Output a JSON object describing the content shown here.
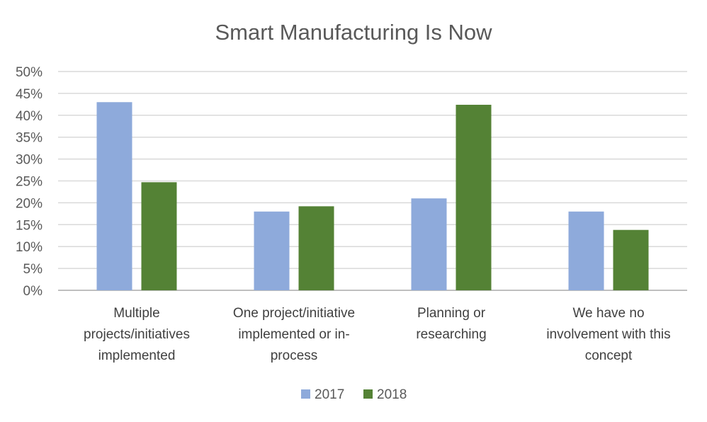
{
  "chart_data": {
    "type": "bar",
    "title": "Smart Manufacturing Is Now",
    "categories": [
      [
        "Multiple",
        "projects/initiatives",
        "implemented"
      ],
      [
        "One project/initiative",
        "implemented or in-",
        "process"
      ],
      [
        "Planning or",
        "researching"
      ],
      [
        "We have no",
        "involvement with this",
        "concept"
      ]
    ],
    "series": [
      {
        "name": "2017",
        "color": "#8eaadb",
        "values": [
          43,
          18,
          21,
          18
        ]
      },
      {
        "name": "2018",
        "color": "#548235",
        "values": [
          24.7,
          19.2,
          42.4,
          13.8
        ]
      }
    ],
    "ylim": [
      0,
      50
    ],
    "yticks": [
      "0%",
      "5%",
      "10%",
      "15%",
      "20%",
      "25%",
      "30%",
      "35%",
      "40%",
      "45%",
      "50%"
    ],
    "xlabel": "",
    "ylabel": "",
    "legend_position": "bottom",
    "grid": true
  }
}
